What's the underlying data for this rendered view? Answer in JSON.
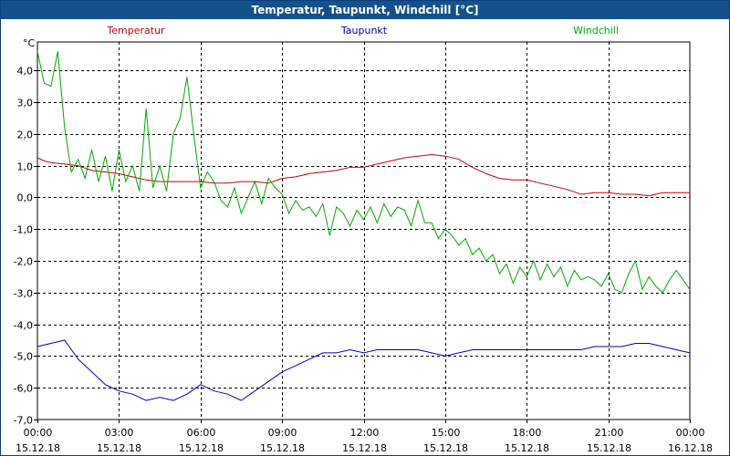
{
  "window": {
    "title": "Temperatur, Taupunkt, Windchill [°C]"
  },
  "chart_data": {
    "type": "line",
    "title": "Temperatur, Taupunkt, Windchill [°C]",
    "ylabel": "°C",
    "ylim": [
      -7.0,
      4.9
    ],
    "grid": true,
    "legend_position": "top",
    "y_ticks": [
      "-7,0",
      "-6,0",
      "-5,0",
      "-4,0",
      "-3,0",
      "-2,0",
      "-1,0",
      "0,0",
      "1,0",
      "2,0",
      "3,0",
      "4,0"
    ],
    "y_tick_values": [
      -7,
      -6,
      -5,
      -4,
      -3,
      -2,
      -1,
      0,
      1,
      2,
      3,
      4
    ],
    "x_tick_hours": [
      0,
      3,
      6,
      9,
      12,
      15,
      18,
      21,
      24
    ],
    "x_ticks": [
      {
        "time": "00:00",
        "date": "15.12.18"
      },
      {
        "time": "03:00",
        "date": "15.12.18"
      },
      {
        "time": "06:00",
        "date": "15.12.18"
      },
      {
        "time": "09:00",
        "date": "15.12.18"
      },
      {
        "time": "12:00",
        "date": "15.12.18"
      },
      {
        "time": "15:00",
        "date": "15.12.18"
      },
      {
        "time": "18:00",
        "date": "15.12.18"
      },
      {
        "time": "21:00",
        "date": "15.12.18"
      },
      {
        "time": "00:00",
        "date": "16.12.18"
      }
    ],
    "series": [
      {
        "name": "Temperatur",
        "color": "#cc0000",
        "x": [
          0,
          0.25,
          0.5,
          1,
          1.5,
          2,
          2.5,
          3,
          3.5,
          4,
          4.5,
          5,
          5.5,
          6,
          6.5,
          7,
          7.5,
          8,
          8.5,
          9,
          9.5,
          10,
          10.5,
          11,
          11.5,
          12,
          12.5,
          13,
          13.5,
          14,
          14.5,
          15,
          15.5,
          16,
          16.5,
          17,
          17.5,
          18,
          18.5,
          19,
          19.5,
          20,
          20.5,
          21,
          21.5,
          22,
          22.5,
          23,
          23.5,
          24
        ],
        "values": [
          1.25,
          1.15,
          1.1,
          1.05,
          1.0,
          0.85,
          0.8,
          0.75,
          0.65,
          0.55,
          0.5,
          0.5,
          0.5,
          0.5,
          0.45,
          0.45,
          0.5,
          0.5,
          0.45,
          0.6,
          0.65,
          0.75,
          0.8,
          0.85,
          0.95,
          0.95,
          1.05,
          1.15,
          1.25,
          1.3,
          1.35,
          1.3,
          1.2,
          0.95,
          0.75,
          0.6,
          0.55,
          0.55,
          0.45,
          0.35,
          0.25,
          0.1,
          0.15,
          0.15,
          0.1,
          0.1,
          0.05,
          0.15,
          0.15,
          0.15
        ]
      },
      {
        "name": "Taupunkt",
        "color": "#0000cc",
        "x": [
          0,
          0.5,
          1,
          1.5,
          2,
          2.5,
          3,
          3.5,
          4,
          4.5,
          5,
          5.5,
          6,
          6.5,
          7,
          7.5,
          8,
          8.5,
          9,
          9.5,
          10,
          10.5,
          11,
          11.5,
          12,
          12.5,
          13,
          13.5,
          14,
          14.5,
          15,
          15.5,
          16,
          16.5,
          17,
          17.5,
          18,
          18.5,
          19,
          19.5,
          20,
          20.5,
          21,
          21.5,
          22,
          22.5,
          23,
          23.5,
          24
        ],
        "values": [
          -4.7,
          -4.6,
          -4.5,
          -5.1,
          -5.5,
          -5.9,
          -6.1,
          -6.2,
          -6.4,
          -6.3,
          -6.4,
          -6.2,
          -5.9,
          -6.1,
          -6.2,
          -6.4,
          -6.1,
          -5.8,
          -5.5,
          -5.3,
          -5.1,
          -4.9,
          -4.9,
          -4.8,
          -4.9,
          -4.8,
          -4.8,
          -4.8,
          -4.8,
          -4.9,
          -5.0,
          -4.9,
          -4.8,
          -4.8,
          -4.8,
          -4.8,
          -4.8,
          -4.8,
          -4.8,
          -4.8,
          -4.8,
          -4.7,
          -4.7,
          -4.7,
          -4.6,
          -4.6,
          -4.7,
          -4.8,
          -4.9
        ]
      },
      {
        "name": "Windchill",
        "color": "#00aa00",
        "x": [
          0,
          0.25,
          0.5,
          0.75,
          1.0,
          1.25,
          1.5,
          1.75,
          2.0,
          2.25,
          2.5,
          2.75,
          3.0,
          3.25,
          3.5,
          3.75,
          4.0,
          4.25,
          4.5,
          4.75,
          5.0,
          5.25,
          5.5,
          5.75,
          6.0,
          6.25,
          6.5,
          6.75,
          7.0,
          7.25,
          7.5,
          7.75,
          8.0,
          8.25,
          8.5,
          8.75,
          9.0,
          9.25,
          9.5,
          9.75,
          10.0,
          10.25,
          10.5,
          10.75,
          11.0,
          11.25,
          11.5,
          11.75,
          12.0,
          12.25,
          12.5,
          12.75,
          13.0,
          13.25,
          13.5,
          13.75,
          14.0,
          14.25,
          14.5,
          14.75,
          15.0,
          15.25,
          15.5,
          15.75,
          16.0,
          16.25,
          16.5,
          16.75,
          17.0,
          17.25,
          17.5,
          17.75,
          18.0,
          18.25,
          18.5,
          18.75,
          19.0,
          19.25,
          19.5,
          19.75,
          20.0,
          20.25,
          20.5,
          20.75,
          21.0,
          21.25,
          21.5,
          21.75,
          22.0,
          22.25,
          22.5,
          22.75,
          23.0,
          23.25,
          23.5,
          23.75,
          24.0
        ],
        "values": [
          4.6,
          3.6,
          3.5,
          4.6,
          2.2,
          0.8,
          1.2,
          0.6,
          1.5,
          0.5,
          1.3,
          0.2,
          1.5,
          0.5,
          1.0,
          0.2,
          2.8,
          0.3,
          1.0,
          0.2,
          2.0,
          2.5,
          3.8,
          2.0,
          0.3,
          0.8,
          0.5,
          -0.1,
          -0.3,
          0.3,
          -0.5,
          0.0,
          0.5,
          -0.2,
          0.6,
          0.3,
          0.1,
          -0.5,
          -0.1,
          -0.4,
          -0.3,
          -0.6,
          -0.2,
          -1.2,
          -0.3,
          -0.5,
          -0.9,
          -0.4,
          -0.7,
          -0.3,
          -0.8,
          -0.2,
          -0.6,
          -0.3,
          -0.4,
          -0.9,
          -0.1,
          -0.8,
          -0.8,
          -1.3,
          -1.0,
          -1.2,
          -1.5,
          -1.3,
          -1.8,
          -1.6,
          -2.0,
          -1.8,
          -2.4,
          -2.1,
          -2.7,
          -2.2,
          -2.5,
          -2.0,
          -2.6,
          -2.1,
          -2.5,
          -2.2,
          -2.8,
          -2.3,
          -2.6,
          -2.5,
          -2.6,
          -2.8,
          -2.4,
          -2.9,
          -3.0,
          -2.4,
          -2.0,
          -2.9,
          -2.5,
          -2.8,
          -3.0,
          -2.6,
          -2.3,
          -2.6,
          -2.9
        ]
      }
    ]
  }
}
